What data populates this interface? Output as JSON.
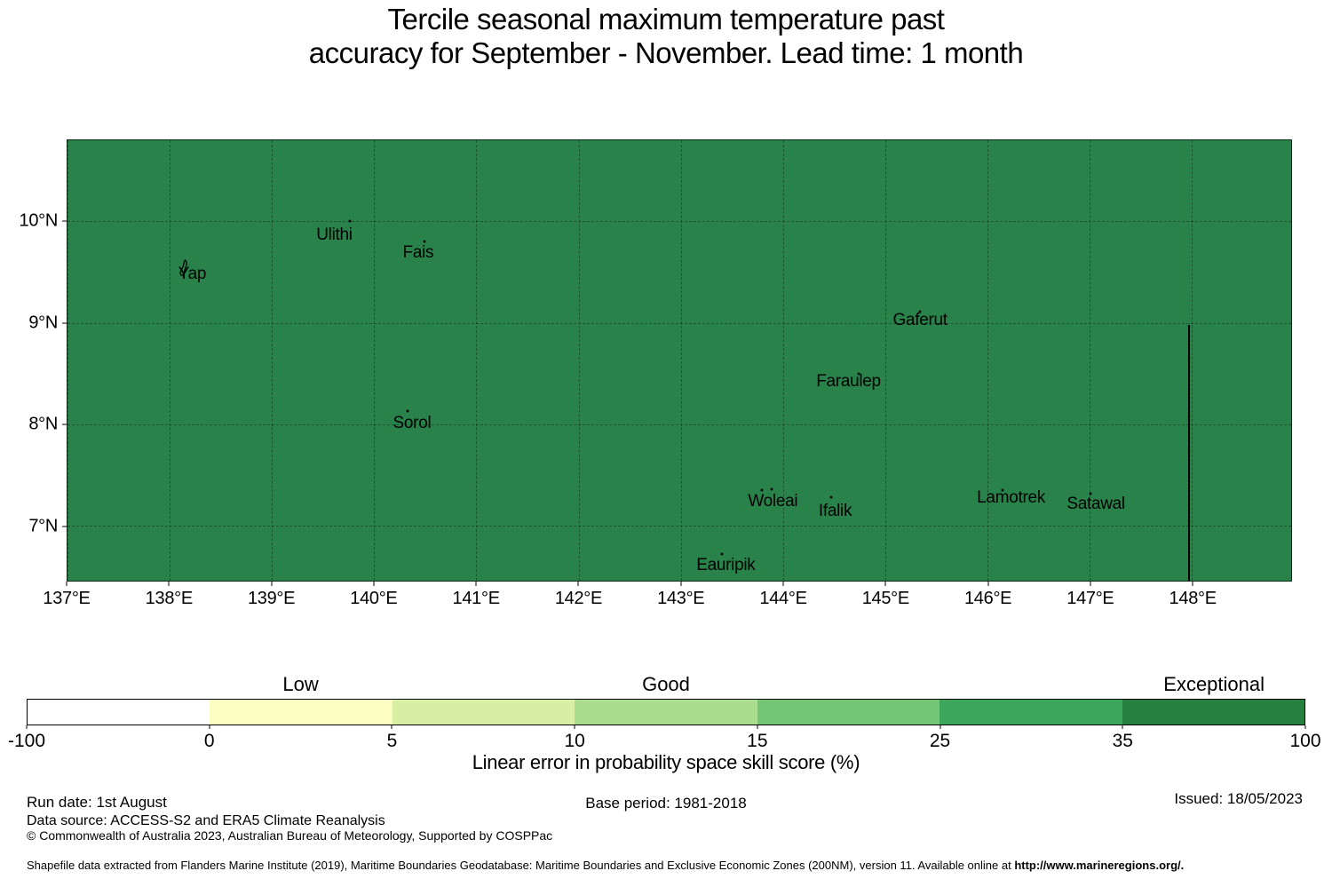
{
  "title": {
    "line1": "Tercile seasonal maximum temperature past",
    "line2": "accuracy for September - November. Lead time: 1 month"
  },
  "chart_data": {
    "type": "choropleth_map",
    "title": "Tercile seasonal maximum temperature past accuracy for September - November. Lead time: 1 month",
    "lon_range": [
      137.0,
      148.97
    ],
    "lat_range": [
      6.46,
      10.8
    ],
    "grid": true,
    "map_fill_color": "#28824a",
    "map_fill_class_range": [
      35,
      100
    ],
    "map_fill_class_name": "Exceptional",
    "lon_ticks": [
      {
        "value": 137,
        "label": "137°E"
      },
      {
        "value": 138,
        "label": "138°E"
      },
      {
        "value": 139,
        "label": "139°E"
      },
      {
        "value": 140,
        "label": "140°E"
      },
      {
        "value": 141,
        "label": "141°E"
      },
      {
        "value": 142,
        "label": "142°E"
      },
      {
        "value": 143,
        "label": "143°E"
      },
      {
        "value": 144,
        "label": "144°E"
      },
      {
        "value": 145,
        "label": "145°E"
      },
      {
        "value": 146,
        "label": "146°E"
      },
      {
        "value": 147,
        "label": "147°E"
      },
      {
        "value": 148,
        "label": "148°E"
      }
    ],
    "lat_ticks": [
      {
        "value": 10,
        "label": "10°N"
      },
      {
        "value": 9,
        "label": "9°N"
      },
      {
        "value": 8,
        "label": "8°N"
      },
      {
        "value": 7,
        "label": "7°N"
      }
    ],
    "eez_boundary": {
      "lon": 147.97,
      "lat_top": 8.98,
      "lat_bottom": 6.46
    },
    "islands": [
      {
        "name": "Yap",
        "label_lon": 138.22,
        "label_lat": 9.48,
        "marker": "yap-outline",
        "dots": []
      },
      {
        "name": "Ulithi",
        "label_lon": 139.61,
        "label_lat": 9.86,
        "dots": [
          [
            139.76,
            10.0
          ]
        ]
      },
      {
        "name": "Fais",
        "label_lon": 140.43,
        "label_lat": 9.69,
        "dots": [
          [
            140.49,
            9.8
          ]
        ]
      },
      {
        "name": "Sorol",
        "label_lon": 140.37,
        "label_lat": 8.01,
        "dots": [
          [
            140.33,
            8.13
          ]
        ]
      },
      {
        "name": "Gaferut",
        "label_lon": 145.34,
        "label_lat": 9.02,
        "dots": [
          [
            145.34,
            9.11
          ]
        ]
      },
      {
        "name": "Faraulep",
        "label_lon": 144.64,
        "label_lat": 8.42,
        "dots": [
          [
            144.74,
            8.5
          ]
        ]
      },
      {
        "name": "Woleai",
        "label_lon": 143.9,
        "label_lat": 7.24,
        "dots": [
          [
            143.79,
            7.35
          ],
          [
            143.89,
            7.36
          ]
        ]
      },
      {
        "name": "Ifalik",
        "label_lon": 144.51,
        "label_lat": 7.14,
        "dots": [
          [
            144.47,
            7.28
          ]
        ]
      },
      {
        "name": "Lamotrek",
        "label_lon": 146.23,
        "label_lat": 7.27,
        "dots": [
          [
            146.15,
            7.35
          ]
        ]
      },
      {
        "name": "Satawal",
        "label_lon": 147.06,
        "label_lat": 7.21,
        "dots": [
          [
            147.01,
            7.32
          ]
        ]
      },
      {
        "name": "Eauripik",
        "label_lon": 143.44,
        "label_lat": 6.61,
        "dots": [
          [
            143.4,
            6.72
          ]
        ]
      }
    ],
    "colorbar": {
      "levels": [
        -100,
        0,
        5,
        10,
        15,
        25,
        35,
        100
      ],
      "tick_labels": [
        "-100",
        "0",
        "5",
        "10",
        "15",
        "25",
        "35",
        "100"
      ],
      "colors": [
        "#ffffff",
        "#fcfdc1",
        "#d8efa3",
        "#abdd8e",
        "#74c677",
        "#3ba65c",
        "#26803f"
      ],
      "category_labels": [
        {
          "text": "Low",
          "segment": 1
        },
        {
          "text": "Good",
          "segment": 3
        },
        {
          "text": "Exceptional",
          "segment": 6
        }
      ],
      "axis_label": "Linear error in probability space skill score (%)"
    }
  },
  "footer": {
    "run_date": "Run date: 1st August",
    "base_period": "Base period: 1981-2018",
    "issued": "Issued: 18/05/2023",
    "data_source": "Data source: ACCESS-S2 and ERA5 Climate Reanalysis",
    "copyright": "© Commonwealth of Australia 2023, Australian Bureau of Meteorology, Supported by COSPPac",
    "shapefile_note": "Shapefile data extracted from Flanders Marine Institute (2019), Maritime Boundaries Geodatabase: Maritime Boundaries and Exclusive Economic Zones (200NM), version 11. Available online at ",
    "shapefile_url": "http://www.marineregions.org/."
  }
}
